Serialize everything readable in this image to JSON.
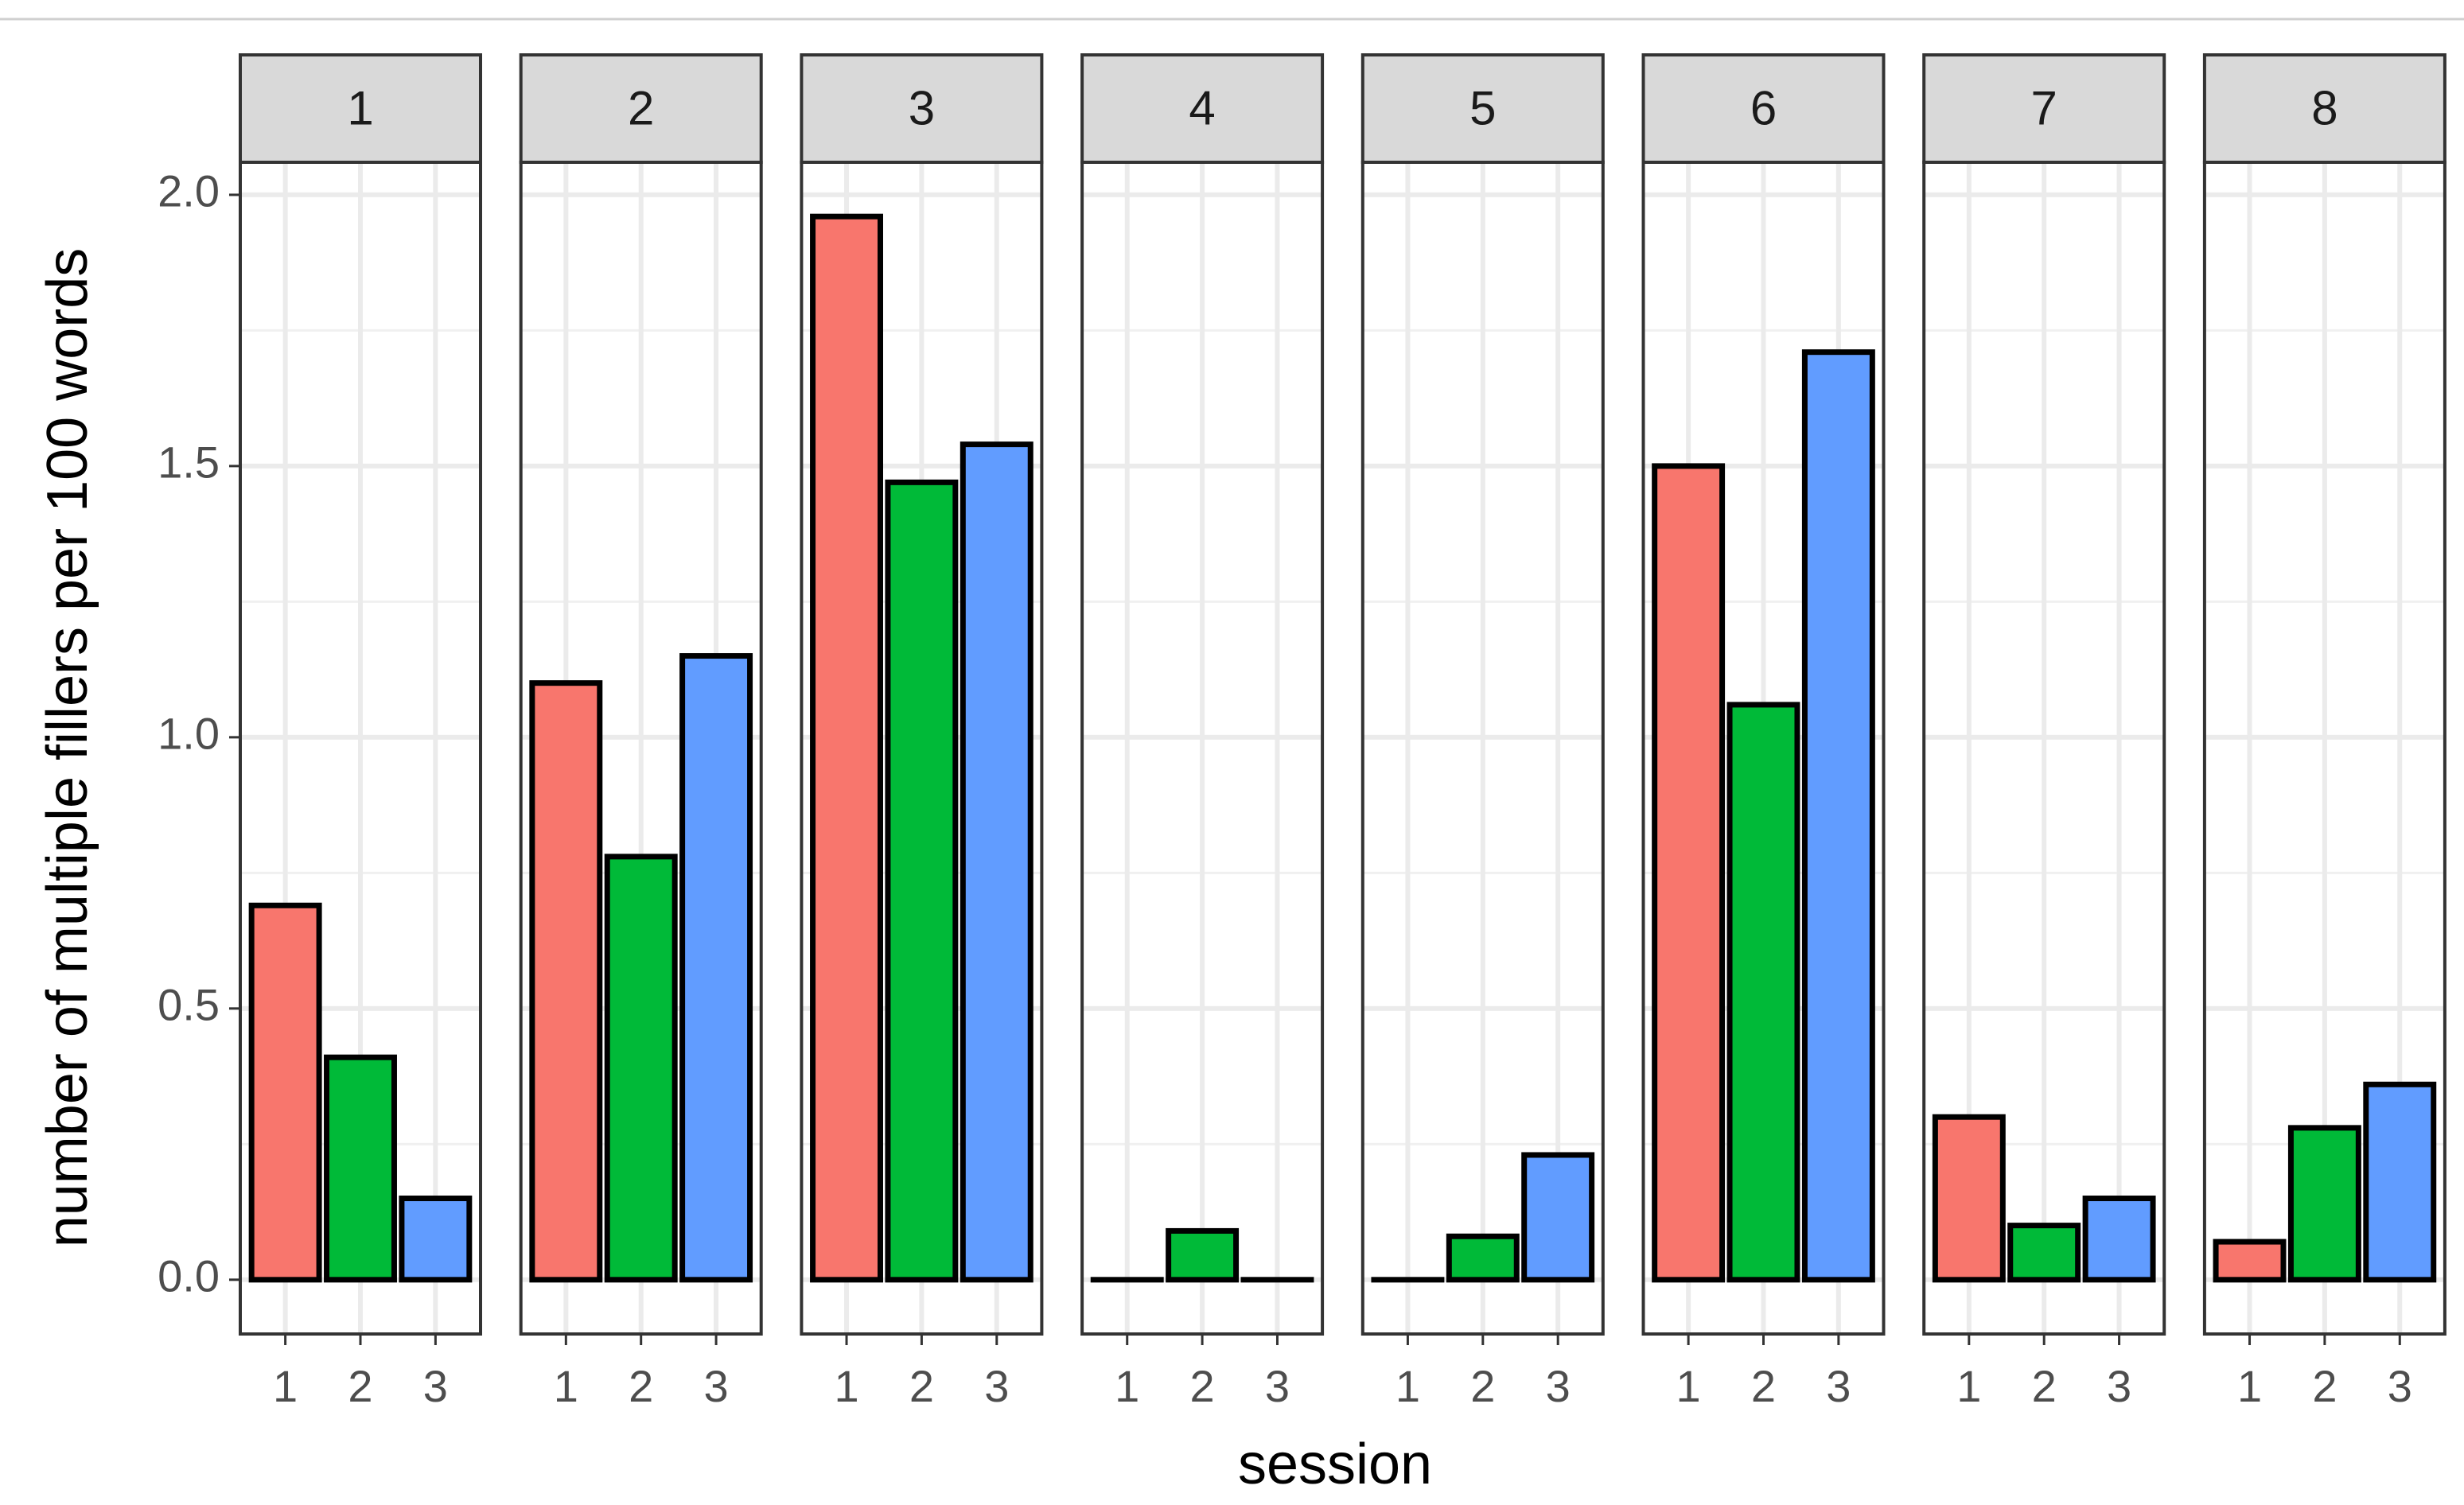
{
  "chart_data": {
    "type": "bar",
    "ylabel": "number of multiple fillers per 100 words",
    "xlabel": "session",
    "categories": [
      "1",
      "2",
      "3"
    ],
    "colors": [
      "#F8766D",
      "#00BA38",
      "#619CFF"
    ],
    "ylim": [
      -0.1,
      2.06
    ],
    "yticks": [
      {
        "value": 0,
        "label": "0.0"
      },
      {
        "value": 0.5,
        "label": "0.5"
      },
      {
        "value": 1,
        "label": "1.0"
      },
      {
        "value": 1.5,
        "label": "1.5"
      },
      {
        "value": 2,
        "label": "2.0"
      }
    ],
    "grid": true,
    "facets": [
      {
        "title": "1",
        "values": [
          0.69,
          0.41,
          0.15
        ]
      },
      {
        "title": "2",
        "values": [
          1.1,
          0.78,
          1.15
        ]
      },
      {
        "title": "3",
        "values": [
          1.96,
          1.47,
          1.54
        ]
      },
      {
        "title": "4",
        "values": [
          0,
          0.09,
          0
        ]
      },
      {
        "title": "5",
        "values": [
          0,
          0.08,
          0.23
        ]
      },
      {
        "title": "6",
        "values": [
          1.5,
          1.06,
          1.71
        ]
      },
      {
        "title": "7",
        "values": [
          0.3,
          0.1,
          0.15
        ]
      },
      {
        "title": "8",
        "values": [
          0.07,
          0.28,
          0.36
        ]
      }
    ]
  }
}
